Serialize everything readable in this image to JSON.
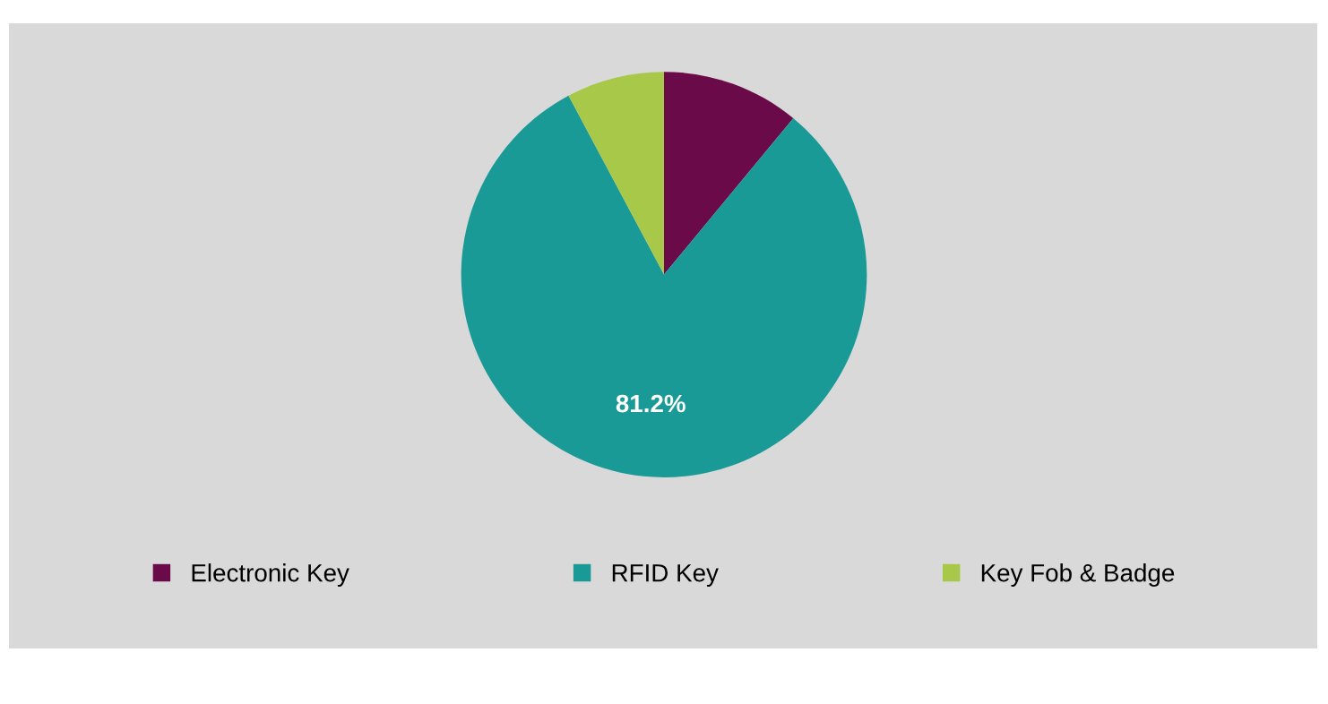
{
  "chart_data": {
    "type": "pie",
    "categories": [
      "Electronic Key",
      "RFID Key",
      "Key Fob & Badge"
    ],
    "values": [
      11.0,
      81.2,
      7.8
    ],
    "colors": [
      "#6b0a48",
      "#1a9a96",
      "#a8c84a"
    ],
    "value_labels": [
      null,
      "81.2%",
      null
    ],
    "legend": "bottom"
  }
}
